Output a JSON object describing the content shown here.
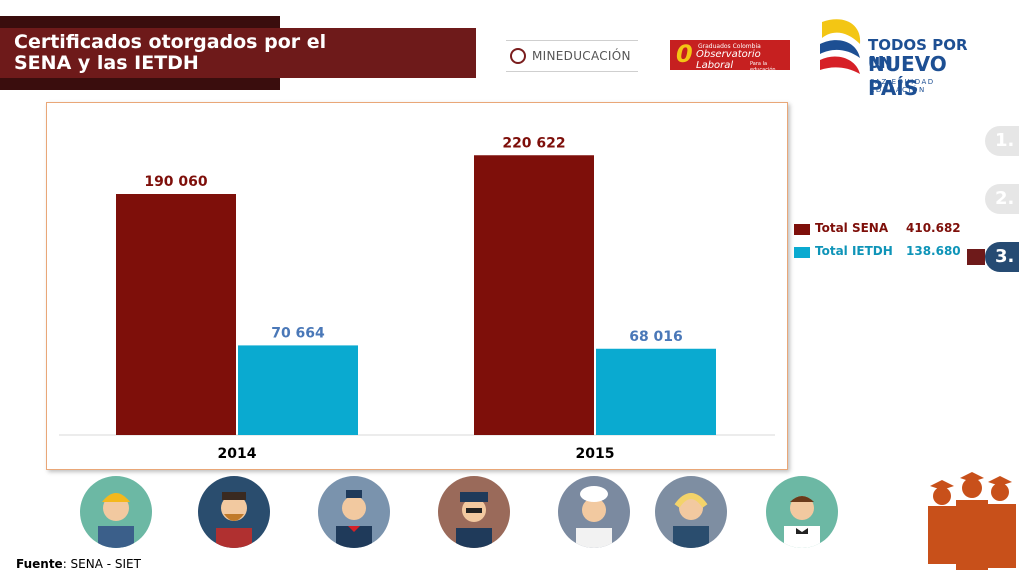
{
  "header": {
    "title": "Certificados otorgados por el\nSENA y las IETDH"
  },
  "logos": {
    "mineducacion": "MINEDUCACIÓN",
    "observatorio_top": "Graduados Colombia",
    "observatorio_main": "Observatorio Laboral",
    "observatorio_sub": "Para la educación",
    "gobierno_line1": "TODOS POR UN",
    "gobierno_line2": "NUEVO PAÍS",
    "gobierno_line3": "PAZ  EQUIDAD  EDUCACIÓN"
  },
  "legend": [
    {
      "name": "Total SENA",
      "total": "410.682"
    },
    {
      "name": "Total IETDH",
      "total": "138.680"
    }
  ],
  "nav": [
    {
      "label": "1.",
      "active": false
    },
    {
      "label": "2.",
      "active": false
    },
    {
      "label": "3.",
      "active": true
    }
  ],
  "source": {
    "label": "Fuente",
    "text": ": SENA - SIET"
  },
  "colors": {
    "sena": "#7e0f0a",
    "ietdh": "#0aaad0",
    "sena_label": "#7e0f0a",
    "ietdh_label": "#4a78b8"
  },
  "avatars": [
    "construction-worker-icon",
    "hipster-icon",
    "flight-attendant-icon",
    "police-officer-icon",
    "chef-icon",
    "call-center-agent-icon",
    "waiter-icon"
  ],
  "chart_data": {
    "type": "bar",
    "categories": [
      "2014",
      "2015"
    ],
    "series": [
      {
        "name": "Total SENA",
        "values": [
          190060,
          220622
        ],
        "labels": [
          "190 060",
          "220 622"
        ]
      },
      {
        "name": "Total IETDH",
        "values": [
          70664,
          68016
        ],
        "labels": [
          "70 664",
          "68 016"
        ]
      }
    ],
    "ylim": [
      0,
      250000
    ],
    "grid": false,
    "legend_position": "right",
    "title": "",
    "xlabel": "",
    "ylabel": ""
  }
}
